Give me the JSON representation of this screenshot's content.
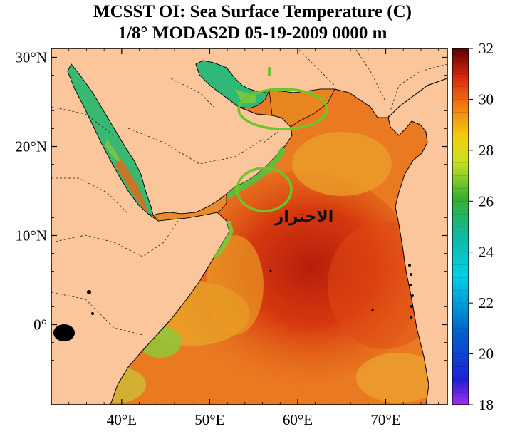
{
  "title": {
    "line1": "MCSST OI:  Sea Surface Temperature (C)",
    "line2": "1/8° MODAS2D 05-19-2009 0000 m"
  },
  "map": {
    "lon_ticks": [
      {
        "lon": 40,
        "label": "40°E"
      },
      {
        "lon": 50,
        "label": "50°E"
      },
      {
        "lon": 60,
        "label": "60°E"
      },
      {
        "lon": 70,
        "label": "70°E"
      }
    ],
    "lat_ticks": [
      {
        "lat": 30,
        "label": "30°N"
      },
      {
        "lat": 20,
        "label": "20°N"
      },
      {
        "lat": 10,
        "label": "10°N"
      },
      {
        "lat": 0,
        "label": "0°"
      }
    ],
    "lon_range": [
      32,
      77
    ],
    "lat_range": [
      -9,
      31
    ],
    "land_color": "#fcc69d",
    "highlight_color": "#6cc62a",
    "highlight_regions": [
      {
        "name": "Gulf of Oman",
        "lon": 57.0,
        "lat": 24.3
      },
      {
        "name": "Arabian Sea off Oman/Yemen coast",
        "lon": 55.4,
        "lat": 15.3
      }
    ]
  },
  "annotation": {
    "text": "الاحترار"
  },
  "colorbar": {
    "min": 18,
    "max": 32,
    "tick_labels": [
      "32",
      "30",
      "28",
      "26",
      "24",
      "22",
      "20",
      "18"
    ],
    "colors": [
      "#9b30e8",
      "#0a10c8",
      "#0060d0",
      "#00c8e0",
      "#10b880",
      "#2ca82c",
      "#c8e020",
      "#f0c810",
      "#f07010",
      "#e02010",
      "#5a0000"
    ]
  }
}
